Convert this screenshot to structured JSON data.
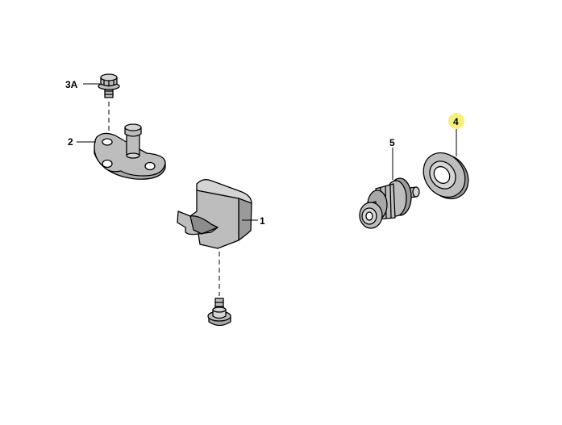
{
  "colors": {
    "part_fill": "#bdbdbd",
    "part_fill_light": "#d4d4d4",
    "part_fill_dark": "#9a9a9a",
    "part_stroke": "#000000",
    "highlight": "#f5f07a",
    "background": "#ffffff"
  },
  "callouts": {
    "part_1": "1",
    "part_2": "2",
    "part_3a": "3A",
    "part_4": "4",
    "part_5": "5"
  },
  "highlighted_callout": "4",
  "parts": [
    {
      "label": "3A",
      "icon": "flanged-bolt-icon"
    },
    {
      "label": "2",
      "icon": "mounting-bracket-icon"
    },
    {
      "label": "1",
      "icon": "bump-stop-block-icon"
    },
    {
      "label": "",
      "icon": "screw-icon"
    },
    {
      "label": "5",
      "icon": "striker-pin-icon"
    },
    {
      "label": "4",
      "icon": "sealing-washer-icon"
    }
  ]
}
